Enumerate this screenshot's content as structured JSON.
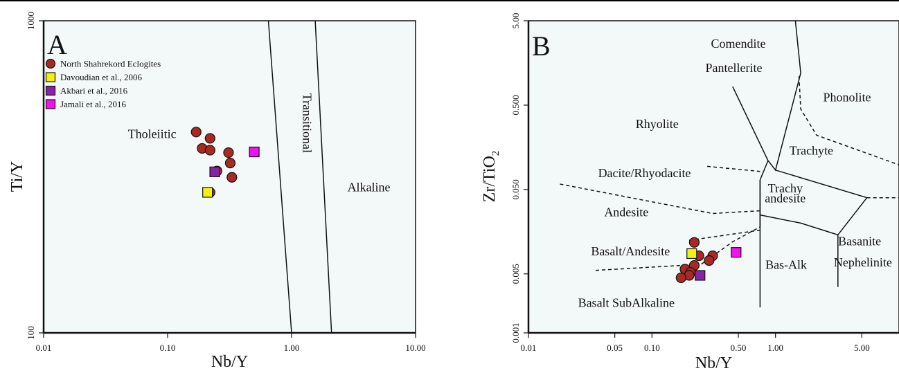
{
  "colors": {
    "plot_bg": "#f3f9f8",
    "eclogite": "#a92a22",
    "davoudian": "#f4f10e",
    "akbari": "#8a22a6",
    "jamali": "#f012ef"
  },
  "chart_data": [
    {
      "type": "scatter",
      "panel_label": "A",
      "xlabel": "Nb/Y",
      "ylabel": "Ti/Y",
      "x_scale": "log",
      "y_scale": "log",
      "xlim": [
        0.01,
        10
      ],
      "ylim": [
        100,
        1000
      ],
      "x_ticks": [
        {
          "value": 0.01,
          "label": "0.01"
        },
        {
          "value": 0.1,
          "label": "0.10"
        },
        {
          "value": 1,
          "label": "1.00"
        },
        {
          "value": 10,
          "label": "10.00"
        }
      ],
      "y_ticks": [
        {
          "value": 100,
          "label": "100"
        },
        {
          "value": 1000,
          "label": "1000"
        }
      ],
      "legend": {
        "position": "top-left",
        "entries": [
          {
            "label": "North Shahrekord Eclogites",
            "marker": "circle",
            "color": "#a92a22"
          },
          {
            "label": "Davoudian et al., 2006",
            "marker": "square",
            "color": "#f4f10e"
          },
          {
            "label": "Akbari et al., 2016",
            "marker": "square",
            "color": "#8a22a6"
          },
          {
            "label": "Jamali et al., 2016",
            "marker": "square",
            "color": "#f012ef"
          }
        ]
      },
      "series": [
        {
          "name": "North Shahrekord Eclogites",
          "marker": "circle",
          "points": [
            [
              0.17,
              440
            ],
            [
              0.22,
              420
            ],
            [
              0.19,
              390
            ],
            [
              0.22,
              385
            ],
            [
              0.31,
              378
            ],
            [
              0.32,
              350
            ],
            [
              0.25,
              330
            ],
            [
              0.33,
              315
            ],
            [
              0.22,
              282
            ]
          ]
        },
        {
          "name": "Davoudian et al., 2006",
          "marker": "square",
          "points": [
            [
              0.21,
              282
            ]
          ]
        },
        {
          "name": "Akbari et al., 2016",
          "marker": "square",
          "points": [
            [
              0.24,
              328
            ]
          ]
        },
        {
          "name": "Jamali et al., 2016",
          "marker": "square",
          "points": [
            [
              0.5,
              380
            ]
          ]
        }
      ],
      "boundaries": [
        {
          "style": "solid",
          "points": [
            [
              0.65,
              1000
            ],
            [
              1.0,
              100
            ]
          ]
        },
        {
          "style": "solid",
          "points": [
            [
              1.55,
              1000
            ],
            [
              2.1,
              100
            ]
          ]
        }
      ],
      "regions": [
        {
          "label": "Tholeiitic",
          "x": 0.075,
          "y": 430,
          "rotate": 0
        },
        {
          "label": "Transitional",
          "x": 1.3,
          "y": 470,
          "rotate": 90
        },
        {
          "label": "Alkaline",
          "x": 4.2,
          "y": 290,
          "rotate": 0
        }
      ]
    },
    {
      "type": "scatter",
      "panel_label": "B",
      "xlabel": "Nb/Y",
      "ylabel": "Zr/TiO",
      "ylabel_sub": "2",
      "x_scale": "log",
      "y_scale": "log",
      "xlim": [
        0.01,
        10
      ],
      "ylim": [
        0.001,
        5
      ],
      "x_ticks": [
        {
          "value": 0.01,
          "label": "0.01"
        },
        {
          "value": 0.05,
          "label": "0.05"
        },
        {
          "value": 0.1,
          "label": "0.10"
        },
        {
          "value": 0.5,
          "label": "0.50"
        },
        {
          "value": 1,
          "label": "1.00"
        },
        {
          "value": 5,
          "label": "5.00"
        }
      ],
      "y_ticks": [
        {
          "value": 0.001,
          "label": "0.001"
        },
        {
          "value": 0.005,
          "label": "0.005"
        },
        {
          "value": 0.05,
          "label": "0.050"
        },
        {
          "value": 0.5,
          "label": "0.500"
        },
        {
          "value": 5,
          "label": "5.00"
        }
      ],
      "series": [
        {
          "name": "North Shahrekord Eclogites",
          "marker": "circle",
          "points": [
            [
              0.22,
              0.0118
            ],
            [
              0.24,
              0.0082
            ],
            [
              0.22,
              0.0063
            ],
            [
              0.31,
              0.0082
            ],
            [
              0.29,
              0.0072
            ],
            [
              0.185,
              0.0057
            ],
            [
              0.205,
              0.0052
            ],
            [
              0.2,
              0.0048
            ],
            [
              0.172,
              0.0045
            ]
          ]
        },
        {
          "name": "Davoudian et al., 2006",
          "marker": "square",
          "points": [
            [
              0.21,
              0.0087
            ]
          ]
        },
        {
          "name": "Akbari et al., 2016",
          "marker": "square",
          "points": [
            [
              0.245,
              0.0048
            ]
          ]
        },
        {
          "name": "Jamali et al., 2016",
          "marker": "square",
          "points": [
            [
              0.48,
              0.009
            ]
          ]
        }
      ],
      "boundaries": [
        {
          "style": "solid",
          "points": [
            [
              0.45,
              0.83
            ],
            [
              0.87,
              0.11
            ],
            [
              1.0,
              0.085
            ],
            [
              1.6,
              1.2
            ],
            [
              1.45,
              5
            ]
          ]
        },
        {
          "style": "solid",
          "points": [
            [
              0.87,
              0.11
            ],
            [
              0.75,
              0.065
            ]
          ]
        },
        {
          "style": "solid",
          "points": [
            [
              0.75,
              0.065
            ],
            [
              0.75,
              0.002
            ]
          ]
        },
        {
          "style": "solid",
          "points": [
            [
              0.75,
              0.065
            ],
            [
              0.75,
              0.025
            ],
            [
              1.6,
              0.02
            ],
            [
              3.2,
              0.0145
            ],
            [
              5.5,
              0.04
            ],
            [
              1.0,
              0.085
            ]
          ]
        },
        {
          "style": "solid",
          "points": [
            [
              0.75,
              0.025
            ],
            [
              0.75,
              0.018
            ]
          ]
        },
        {
          "style": "solid",
          "points": [
            [
              3.2,
              0.0145
            ],
            [
              3.2,
              0.0035
            ]
          ]
        },
        {
          "style": "dashed",
          "points": [
            [
              0.018,
              0.058
            ],
            [
              0.31,
              0.026
            ],
            [
              0.75,
              0.028
            ]
          ]
        },
        {
          "style": "dashed",
          "points": [
            [
              0.28,
              0.094
            ],
            [
              0.75,
              0.082
            ]
          ]
        },
        {
          "style": "dashed",
          "points": [
            [
              0.035,
              0.0055
            ],
            [
              0.25,
              0.0065
            ],
            [
              0.45,
              0.012
            ],
            [
              0.75,
              0.018
            ]
          ]
        },
        {
          "style": "dashed",
          "points": [
            [
              0.2,
              0.0125
            ],
            [
              0.75,
              0.0165
            ]
          ]
        },
        {
          "style": "dashed",
          "points": [
            [
              1.55,
              1.1
            ],
            [
              1.6,
              0.45
            ],
            [
              2.15,
              0.22
            ],
            [
              10,
              0.098
            ]
          ]
        },
        {
          "style": "dashed",
          "points": [
            [
              5.5,
              0.04
            ],
            [
              10,
              0.04
            ]
          ]
        }
      ],
      "regions": [
        {
          "label": "Comendite",
          "x": 0.5,
          "y": 2.6,
          "rotate": 0
        },
        {
          "label": "Pantellerite",
          "x": 0.46,
          "y": 1.33,
          "rotate": 0
        },
        {
          "label": "Phonolite",
          "x": 3.8,
          "y": 0.6,
          "rotate": 0
        },
        {
          "label": "Rhyolite",
          "x": 0.11,
          "y": 0.29,
          "rotate": 0
        },
        {
          "label": "Trachyte",
          "x": 1.95,
          "y": 0.14,
          "rotate": 0
        },
        {
          "label": "Dacite/Rhyodacite",
          "x": 0.087,
          "y": 0.076,
          "rotate": 0
        },
        {
          "label": "Trachy",
          "x": 1.2,
          "y": 0.05,
          "rotate": 0
        },
        {
          "label": "andesite",
          "x": 1.2,
          "y": 0.038,
          "rotate": 0
        },
        {
          "label": "Andesite",
          "x": 0.062,
          "y": 0.026,
          "rotate": 0
        },
        {
          "label": "Basanite",
          "x": 4.8,
          "y": 0.0118,
          "rotate": 0
        },
        {
          "label": "Nephelinite",
          "x": 5.1,
          "y": 0.0066,
          "rotate": 0
        },
        {
          "label": "Basalt/Andesite",
          "x": 0.067,
          "y": 0.009,
          "rotate": 0
        },
        {
          "label": "Bas-Alk",
          "x": 1.22,
          "y": 0.0062,
          "rotate": 0
        },
        {
          "label": "Basalt SubAlkaline",
          "x": 0.062,
          "y": 0.0022,
          "rotate": 0
        }
      ]
    }
  ]
}
